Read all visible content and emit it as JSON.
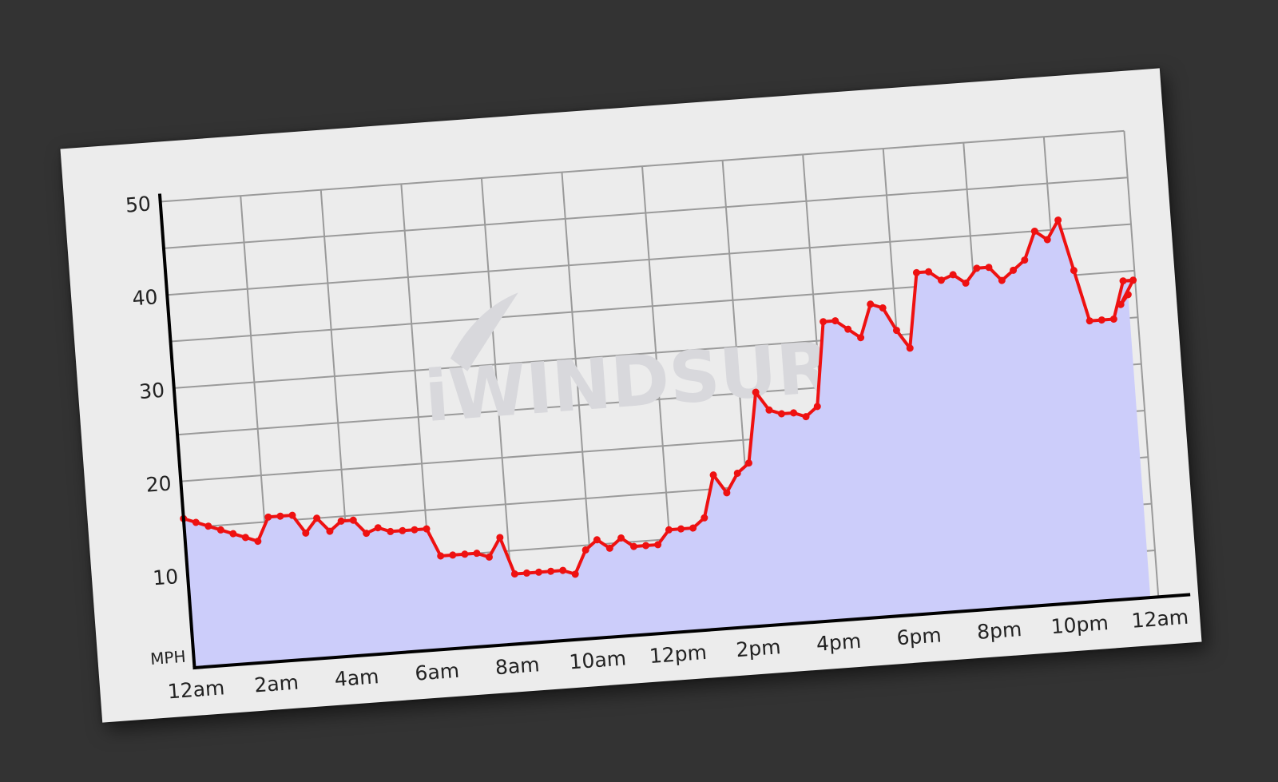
{
  "page": {
    "background": "#333333",
    "card_background": "#ececec"
  },
  "watermark": {
    "text": "iWINDSURF",
    "color": "#d8d8dc"
  },
  "chart_data": {
    "type": "line",
    "y_unit_label": "MPH",
    "y_ticks": [
      "10",
      "20",
      "30",
      "40",
      "50"
    ],
    "ylim": [
      0,
      50
    ],
    "xlim": [
      0,
      24
    ],
    "x_ticks": [
      {
        "h": 0,
        "label": "12am"
      },
      {
        "h": 2,
        "label": "2am"
      },
      {
        "h": 4,
        "label": "4am"
      },
      {
        "h": 6,
        "label": "6am"
      },
      {
        "h": 8,
        "label": "8am"
      },
      {
        "h": 10,
        "label": "10am"
      },
      {
        "h": 12,
        "label": "12pm"
      },
      {
        "h": 14,
        "label": "2pm"
      },
      {
        "h": 16,
        "label": "4pm"
      },
      {
        "h": 18,
        "label": "6pm"
      },
      {
        "h": 20,
        "label": "8pm"
      },
      {
        "h": 22,
        "label": "10pm"
      },
      {
        "h": 24,
        "label": "12am"
      }
    ],
    "grid": true,
    "fill_color": "#cccdfa",
    "series": [
      {
        "key": "gust",
        "color": "#ee1111",
        "points": [
          [
            0,
            16
          ],
          [
            0.3,
            15.5
          ],
          [
            0.6,
            15
          ],
          [
            0.9,
            14.5
          ],
          [
            1.2,
            14
          ],
          [
            1.5,
            13.5
          ],
          [
            1.8,
            13
          ],
          [
            2.1,
            15.5
          ],
          [
            2.4,
            15.5
          ],
          [
            2.7,
            15.5
          ],
          [
            3.0,
            13.5
          ],
          [
            3.3,
            15
          ],
          [
            3.6,
            13.5
          ],
          [
            3.9,
            14.5
          ],
          [
            4.2,
            14.5
          ],
          [
            4.5,
            13
          ],
          [
            4.8,
            13.5
          ],
          [
            5.1,
            13
          ],
          [
            5.4,
            13
          ],
          [
            5.7,
            13
          ],
          [
            6.0,
            13
          ],
          [
            6.3,
            10
          ],
          [
            6.6,
            10
          ],
          [
            6.9,
            10
          ],
          [
            7.2,
            10
          ],
          [
            7.5,
            9.5
          ],
          [
            7.8,
            11.5
          ],
          [
            8.1,
            7.5
          ],
          [
            8.4,
            7.5
          ],
          [
            8.7,
            7.5
          ],
          [
            9.0,
            7.5
          ],
          [
            9.3,
            7.5
          ],
          [
            9.6,
            7
          ],
          [
            9.9,
            9.5
          ],
          [
            10.2,
            10.5
          ],
          [
            10.5,
            9.5
          ],
          [
            10.8,
            10.5
          ],
          [
            11.1,
            9.5
          ],
          [
            11.4,
            9.5
          ],
          [
            11.7,
            9.5
          ],
          [
            12.0,
            11
          ],
          [
            12.3,
            11
          ],
          [
            12.6,
            11
          ],
          [
            12.9,
            12
          ],
          [
            13.2,
            16.5
          ],
          [
            13.5,
            14.5
          ],
          [
            13.8,
            16.5
          ],
          [
            14.1,
            17.5
          ],
          [
            14.4,
            25
          ],
          [
            14.7,
            23
          ],
          [
            15.0,
            22.5
          ],
          [
            15.3,
            22.5
          ],
          [
            15.6,
            22
          ],
          [
            15.9,
            23
          ],
          [
            16.2,
            32
          ],
          [
            16.5,
            32
          ],
          [
            16.8,
            31
          ],
          [
            17.1,
            30
          ],
          [
            17.4,
            33.5
          ],
          [
            17.7,
            33
          ],
          [
            18.0,
            30.5
          ],
          [
            18.3,
            28.5
          ],
          [
            18.6,
            36.5
          ],
          [
            18.9,
            36.5
          ],
          [
            19.2,
            35.5
          ],
          [
            19.5,
            36
          ],
          [
            19.8,
            35
          ],
          [
            20.1,
            36.5
          ],
          [
            20.4,
            36.5
          ],
          [
            20.7,
            35
          ],
          [
            21.0,
            36
          ],
          [
            21.3,
            37
          ],
          [
            21.6,
            40
          ],
          [
            21.9,
            39
          ],
          [
            22.2,
            41
          ],
          [
            22.5,
            35.5
          ],
          [
            22.8,
            30
          ],
          [
            23.1,
            30
          ],
          [
            23.4,
            30
          ],
          [
            23.7,
            34
          ],
          [
            23.95,
            34
          ],
          [
            23.6,
            31.5
          ],
          [
            23.8,
            32.5
          ]
        ]
      }
    ]
  }
}
